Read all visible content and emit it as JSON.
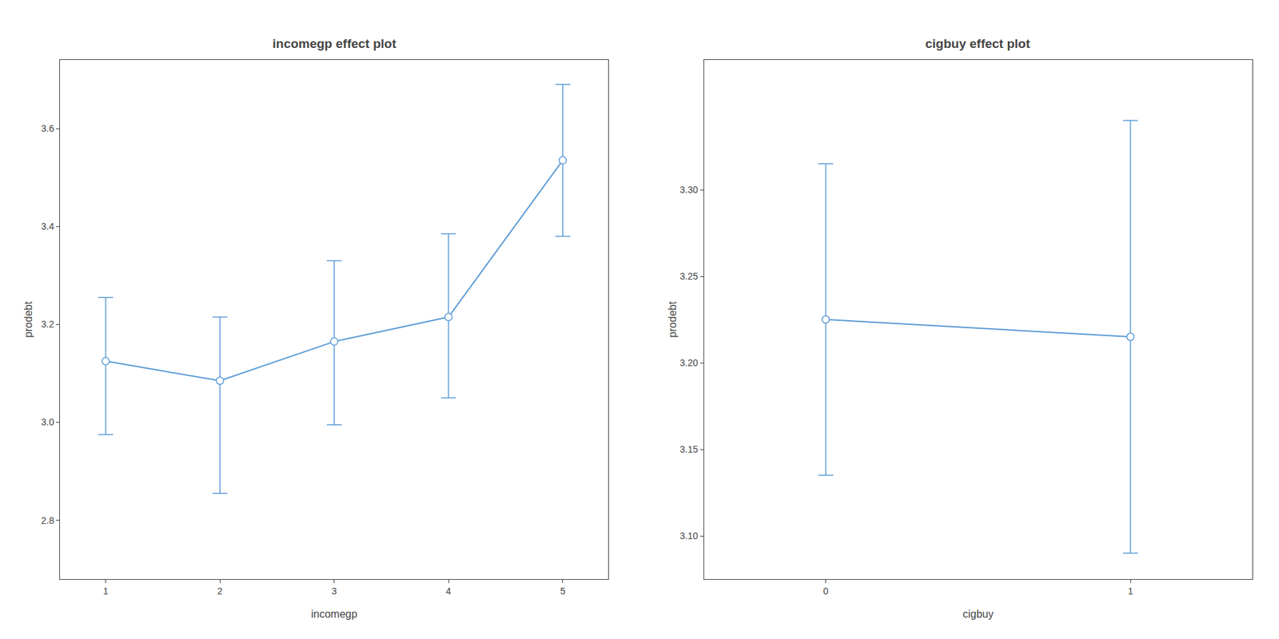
{
  "chart_data": [
    {
      "type": "line",
      "title": "incomegp effect plot",
      "xlabel": "incomegp",
      "ylabel": "prodebt",
      "x": [
        1,
        2,
        3,
        4,
        5
      ],
      "values": [
        3.125,
        3.085,
        3.165,
        3.215,
        3.535
      ],
      "ci_lower": [
        2.975,
        2.855,
        2.995,
        3.05,
        3.38
      ],
      "ci_upper": [
        3.255,
        3.215,
        3.33,
        3.385,
        3.69
      ],
      "xlim": [
        0.6,
        5.4
      ],
      "xticks": [
        1,
        2,
        3,
        4,
        5
      ],
      "ylim": [
        2.68,
        3.74
      ],
      "yticks": [
        2.8,
        {
          "value": 3.0,
          "label": "3.0"
        },
        3.2,
        3.4,
        3.6
      ],
      "color": "#5B9BD5",
      "marker": "circle-open",
      "grid": false
    },
    {
      "type": "line",
      "title": "cigbuy effect plot",
      "xlabel": "cigbuy",
      "ylabel": "prodebt",
      "x": [
        0,
        1
      ],
      "values": [
        3.225,
        3.215
      ],
      "ci_lower": [
        3.135,
        3.09
      ],
      "ci_upper": [
        3.315,
        3.34
      ],
      "xlim": [
        -0.4,
        1.4
      ],
      "xticks": [
        0,
        1
      ],
      "ylim": [
        3.075,
        3.375
      ],
      "yticks": [
        {
          "value": 3.1,
          "label": "3.10"
        },
        3.15,
        {
          "value": 3.2,
          "label": "3.20"
        },
        3.25,
        {
          "value": 3.3,
          "label": "3.30"
        }
      ],
      "color": "#5B9BD5",
      "marker": "circle-open",
      "grid": false
    }
  ]
}
